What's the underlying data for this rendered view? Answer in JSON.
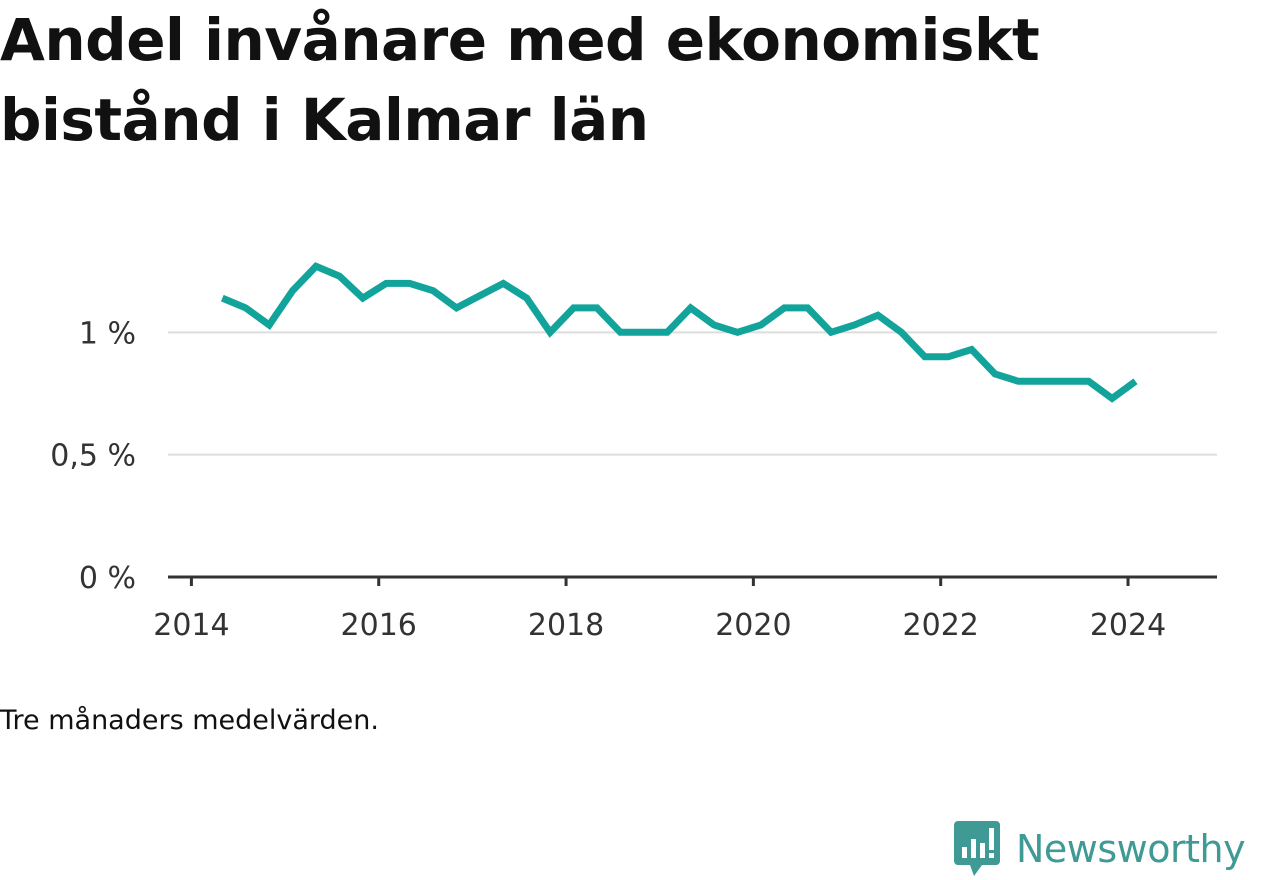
{
  "header": {
    "title_line1": "Andel invånare med ekonomiskt",
    "title_line2": "bistånd i Kalmar län"
  },
  "footer": {
    "note": "Tre månaders medelvärden.",
    "brand": "Newsworthy"
  },
  "colors": {
    "line": "#12a39a",
    "grid": "#dddddd",
    "axis": "#333333",
    "brand": "#3f9a96"
  },
  "icons": {
    "brand_logo": "newsworthy-logo-icon"
  },
  "chart_data": {
    "type": "line",
    "title": "Andel invånare med ekonomiskt bistånd i Kalmar län",
    "xlabel": "",
    "ylabel": "",
    "xlim": [
      2013.75,
      2024.95
    ],
    "ylim": [
      0,
      1.5
    ],
    "x_ticks": [
      2014,
      2016,
      2018,
      2020,
      2022,
      2024
    ],
    "x_tick_labels": [
      "2014",
      "2016",
      "2018",
      "2020",
      "2022",
      "2024"
    ],
    "y_ticks": [
      0,
      0.5,
      1
    ],
    "y_tick_labels": [
      "0 %",
      "0,5 %",
      "1 %"
    ],
    "grid": "horizontal",
    "legend": "none",
    "x": [
      2014.33,
      2014.58,
      2014.83,
      2015.08,
      2015.33,
      2015.58,
      2015.83,
      2016.08,
      2016.33,
      2016.58,
      2016.83,
      2017.08,
      2017.33,
      2017.58,
      2017.83,
      2018.08,
      2018.33,
      2018.58,
      2018.83,
      2019.08,
      2019.33,
      2019.58,
      2019.83,
      2020.08,
      2020.33,
      2020.58,
      2020.83,
      2021.08,
      2021.33,
      2021.58,
      2021.83,
      2022.08,
      2022.33,
      2022.58,
      2022.83,
      2023.08,
      2023.33,
      2023.58,
      2023.83,
      2024.08
    ],
    "values": [
      1.14,
      1.1,
      1.03,
      1.17,
      1.27,
      1.23,
      1.14,
      1.2,
      1.2,
      1.17,
      1.1,
      1.15,
      1.2,
      1.14,
      1.0,
      1.1,
      1.1,
      1.0,
      1.0,
      1.0,
      1.1,
      1.03,
      1.0,
      1.03,
      1.1,
      1.1,
      1.0,
      1.03,
      1.07,
      1.0,
      0.9,
      0.9,
      0.93,
      0.83,
      0.8,
      0.8,
      0.8,
      0.8,
      0.73,
      0.8
    ]
  }
}
